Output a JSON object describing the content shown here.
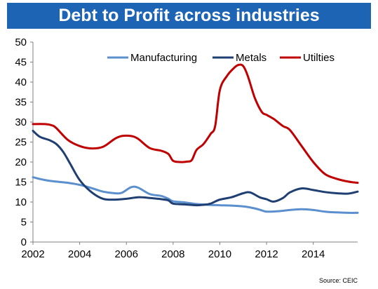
{
  "title": "Debt to Profit across industries",
  "source": "Source: CEIC",
  "colors": {
    "title_bg": "#1d64b4",
    "title_text": "#ffffff",
    "manufacturing": "#5b8fcd",
    "metals": "#1f3f73",
    "utilities": "#c00000"
  },
  "chart_data": {
    "type": "line",
    "title": "Debt to Profit across industries",
    "xlabel": "",
    "ylabel": "",
    "xlim": [
      2002,
      2015.9
    ],
    "ylim": [
      0,
      50
    ],
    "x_ticks": [
      2002,
      2004,
      2006,
      2008,
      2010,
      2012,
      2014
    ],
    "y_ticks": [
      0,
      5,
      10,
      15,
      20,
      25,
      30,
      35,
      40,
      45,
      50
    ],
    "grid": false,
    "legend_position": "top",
    "series": [
      {
        "name": "Manufacturing",
        "color": "#5b8fcd",
        "x": [
          2002,
          2002.5,
          2003,
          2003.5,
          2004,
          2004.5,
          2005,
          2005.5,
          2005.8,
          2006.2,
          2006.5,
          2007,
          2007.5,
          2007.8,
          2008,
          2008.5,
          2009,
          2009.5,
          2010,
          2010.5,
          2011,
          2011.5,
          2011.8,
          2012,
          2012.5,
          2013,
          2013.5,
          2014,
          2014.5,
          2015,
          2015.5,
          2015.9
        ],
        "y": [
          16.2,
          15.5,
          15.1,
          14.8,
          14.3,
          13.5,
          12.6,
          12.2,
          12.3,
          13.7,
          13.6,
          12.0,
          11.5,
          10.8,
          10.2,
          9.9,
          9.5,
          9.3,
          9.2,
          9.1,
          8.9,
          8.4,
          7.9,
          7.6,
          7.7,
          8.0,
          8.2,
          8.0,
          7.6,
          7.4,
          7.3,
          7.3
        ]
      },
      {
        "name": "Metals",
        "color": "#1f3f73",
        "x": [
          2002,
          2002.3,
          2002.7,
          2003,
          2003.3,
          2003.6,
          2004,
          2004.5,
          2005,
          2005.5,
          2006,
          2006.5,
          2007,
          2007.5,
          2007.8,
          2008,
          2008.5,
          2009,
          2009.3,
          2009.6,
          2010,
          2010.5,
          2011,
          2011.3,
          2011.7,
          2012,
          2012.3,
          2012.7,
          2013,
          2013.5,
          2014,
          2014.5,
          2015,
          2015.5,
          2015.9
        ],
        "y": [
          27.8,
          26.3,
          25.5,
          24.5,
          22.5,
          19.5,
          15.5,
          12.5,
          10.8,
          10.6,
          10.8,
          11.2,
          11.0,
          10.7,
          10.4,
          9.6,
          9.4,
          9.2,
          9.3,
          9.6,
          10.6,
          11.2,
          12.2,
          12.4,
          11.2,
          10.7,
          10.1,
          11.0,
          12.4,
          13.4,
          13.0,
          12.5,
          12.2,
          12.1,
          12.6
        ]
      },
      {
        "name": "Utilties",
        "color": "#c00000",
        "x": [
          2002,
          2002.5,
          2002.8,
          2003,
          2003.5,
          2004,
          2004.5,
          2005,
          2005.5,
          2005.8,
          2006.2,
          2006.5,
          2007,
          2007.5,
          2007.8,
          2008,
          2008.3,
          2008.6,
          2008.8,
          2009,
          2009.3,
          2009.6,
          2009.8,
          2010,
          2010.3,
          2010.6,
          2010.8,
          2011,
          2011.2,
          2011.5,
          2011.8,
          2012,
          2012.3,
          2012.7,
          2013,
          2013.5,
          2014,
          2014.5,
          2015,
          2015.5,
          2015.9
        ],
        "y": [
          29.5,
          29.5,
          29.2,
          28.5,
          25.5,
          24.0,
          23.4,
          23.8,
          25.8,
          26.5,
          26.5,
          25.8,
          23.5,
          22.8,
          22.0,
          20.3,
          20.0,
          20.1,
          20.5,
          23.0,
          24.5,
          27.0,
          29.0,
          38.0,
          41.5,
          43.5,
          44.3,
          44.0,
          41.5,
          36.0,
          32.5,
          31.8,
          30.8,
          29.0,
          28.0,
          24.0,
          20.0,
          17.0,
          15.8,
          15.1,
          14.8
        ]
      }
    ]
  }
}
